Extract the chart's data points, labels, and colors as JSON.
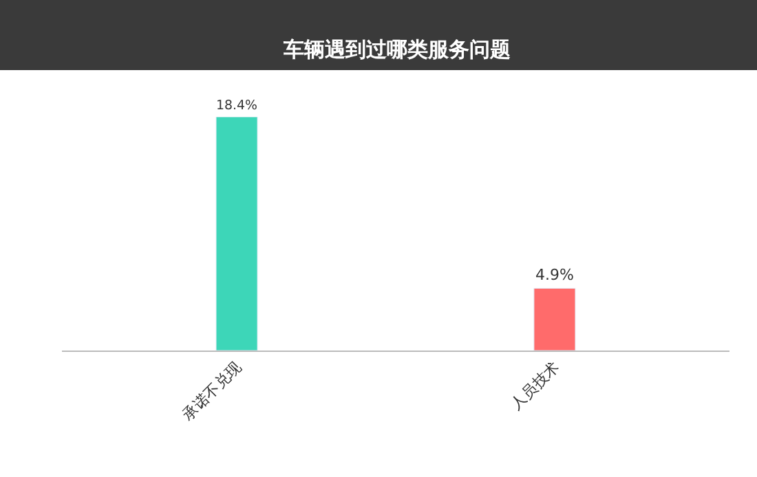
{
  "chart_data": {
    "type": "bar",
    "title": "车辆遇到过哪类服务问题",
    "categories": [
      "承诺不兑现",
      "人员技术"
    ],
    "values": [
      18.4,
      4.9
    ],
    "colors": [
      "#3dd6b8",
      "#ff6b6b"
    ],
    "value_labels": [
      "18.4%",
      "4.9%"
    ]
  }
}
